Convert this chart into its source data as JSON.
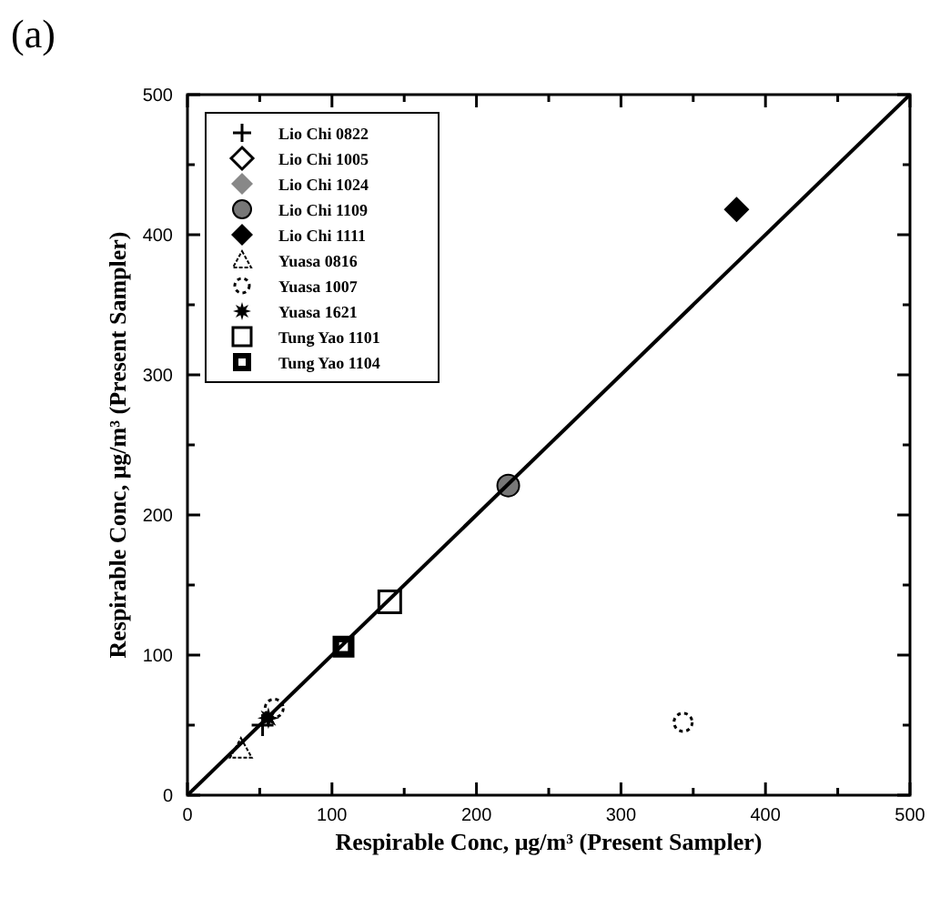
{
  "chart_data": {
    "type": "scatter",
    "title": "(a)",
    "xlabel": "Respirable Conc, μg/m³ (Present Sampler)",
    "ylabel": "Respirable Conc, μg/m³ (Present Sampler)",
    "xlim": [
      0,
      500
    ],
    "ylim": [
      0,
      500
    ],
    "xticks": [
      0,
      {
        "value": 50,
        "label": null
      },
      100,
      {
        "value": 150,
        "label": null
      },
      200,
      {
        "value": 250,
        "label": null
      },
      300,
      {
        "value": 350,
        "label": null
      },
      400,
      {
        "value": 450,
        "label": null
      },
      500
    ],
    "yticks": [
      0,
      {
        "value": 50,
        "label": null
      },
      100,
      {
        "value": 150,
        "label": null
      },
      200,
      {
        "value": 250,
        "label": null
      },
      300,
      {
        "value": 350,
        "label": null
      },
      400,
      {
        "value": 450,
        "label": null
      },
      500
    ],
    "grid": false,
    "legend": "top left",
    "series": [
      {
        "name": "Lio Chi 0822",
        "color": "#000000",
        "marker": "cross",
        "x": [
          52
        ],
        "values": [
          50
        ]
      },
      {
        "name": "Lio Chi 1005",
        "color": "#000000",
        "marker": "diamond-open",
        "x": [
          null
        ],
        "values": [
          null
        ]
      },
      {
        "name": "Lio Chi 1024",
        "color": "#888888",
        "marker": "diamond",
        "x": [
          null
        ],
        "values": [
          null
        ]
      },
      {
        "name": "Lio Chi 1109",
        "color": "#777777",
        "marker": "circle",
        "x": [
          222
        ],
        "values": [
          221
        ]
      },
      {
        "name": "Lio Chi 1111",
        "color": "#000000",
        "marker": "diamond",
        "x": [
          380
        ],
        "values": [
          418
        ]
      },
      {
        "name": "Yuasa 0816",
        "color": "#000000",
        "marker": "triangle",
        "x": [
          37
        ],
        "values": [
          33
        ]
      },
      {
        "name": "Yuasa 1007",
        "color": "#000000",
        "marker": "circle-open",
        "x": [
          60,
          343
        ],
        "values": [
          62,
          52
        ]
      },
      {
        "name": "Yuasa 1621",
        "color": "#000000",
        "marker": "star",
        "x": [
          56
        ],
        "values": [
          55
        ]
      },
      {
        "name": "Tung Yao 1101",
        "color": "#000000",
        "marker": "square-open",
        "x": [
          140
        ],
        "values": [
          138
        ]
      },
      {
        "name": "Tung Yao 1104",
        "color": "#000000",
        "marker": "square",
        "x": [
          108
        ],
        "values": [
          106
        ]
      },
      {
        "type": "line",
        "color": "#000000",
        "x": [
          0,
          500
        ],
        "values": [
          0,
          500
        ],
        "line_style": "solid"
      }
    ]
  }
}
